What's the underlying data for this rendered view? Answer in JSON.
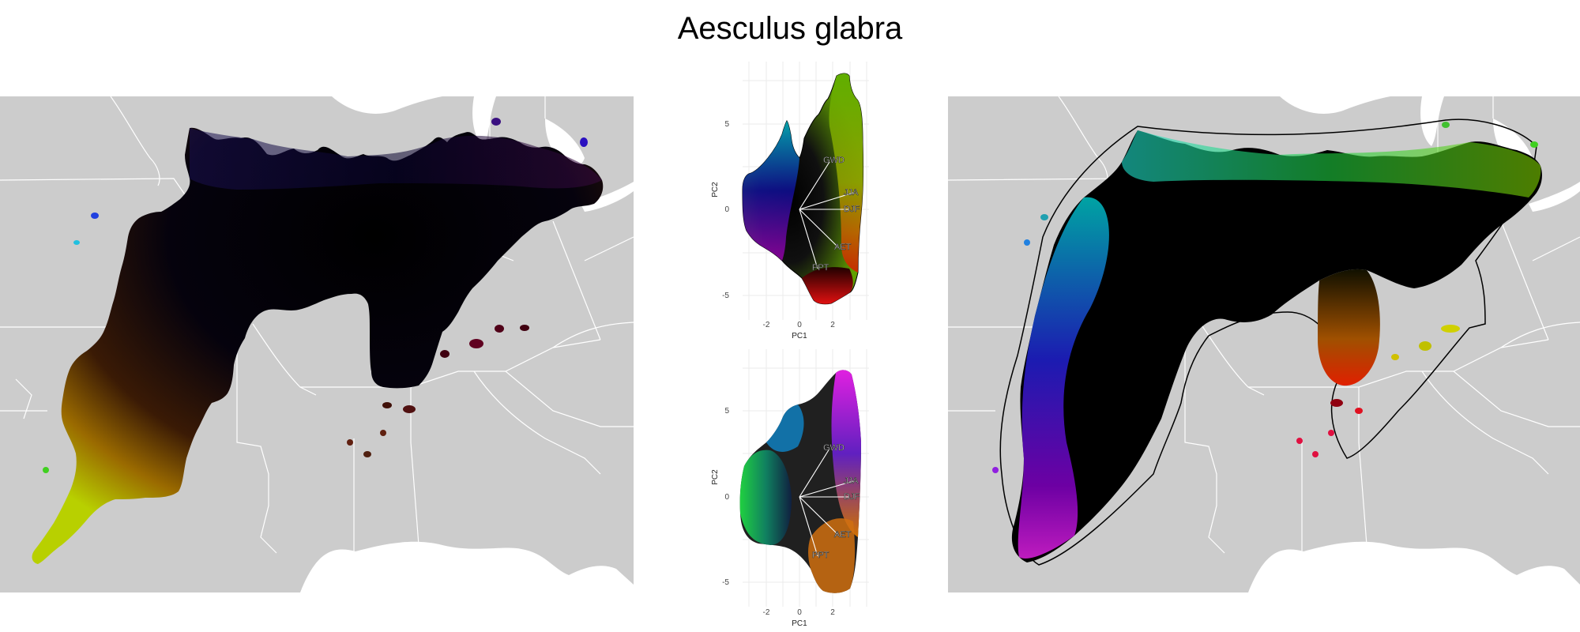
{
  "title": "Aesculus glabra",
  "pca_top": {
    "xlabel": "PC1",
    "ylabel": "PC2",
    "x_ticks": [
      "-2",
      "0",
      "2"
    ],
    "y_ticks": [
      "5",
      "0",
      "-5"
    ],
    "vectors": [
      "GWD",
      "JJA",
      "DJF",
      "AET",
      "PPT"
    ]
  },
  "pca_bottom": {
    "xlabel": "PC1",
    "ylabel": "PC2",
    "x_ticks": [
      "-2",
      "0",
      "2"
    ],
    "y_ticks": [
      "5",
      "0",
      "-5"
    ],
    "vectors": [
      "GWD",
      "JJA",
      "DJF",
      "AET",
      "PPT"
    ]
  },
  "colors": {
    "land": "#cccccc",
    "border": "#ffffff",
    "grid": "#ebebeb"
  }
}
